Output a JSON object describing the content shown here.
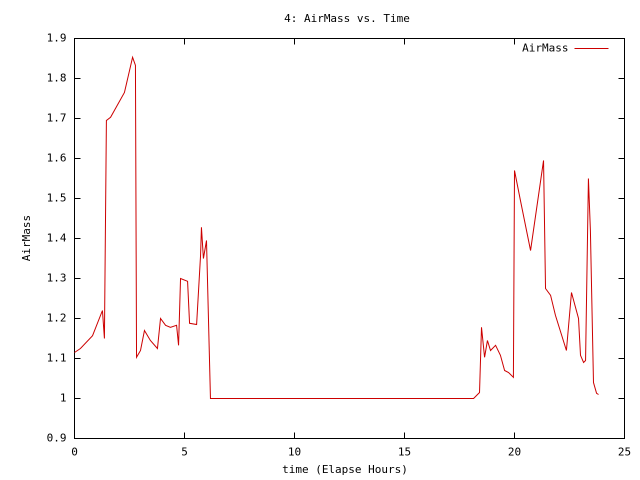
{
  "chart_data": {
    "type": "line",
    "title": "4: AirMass vs. Time",
    "x_label": "time (Elapse Hours)",
    "y_label": "AirMass",
    "x": [
      0,
      0.27,
      0.82,
      1.27,
      1.36,
      1.45,
      1.64,
      2.27,
      2.64,
      2.77,
      2.82,
      3.0,
      3.18,
      3.45,
      3.77,
      3.91,
      4.14,
      4.36,
      4.64,
      4.73,
      4.82,
      5.14,
      5.23,
      5.55,
      5.73,
      5.77,
      5.86,
      6.0,
      6.18,
      18.14,
      18.41,
      18.5,
      18.64,
      18.77,
      18.91,
      19.14,
      19.36,
      19.55,
      19.73,
      19.95,
      20.0,
      20.27,
      20.73,
      21.32,
      21.41,
      21.64,
      21.86,
      22.36,
      22.59,
      22.91,
      23.0,
      23.14,
      23.23,
      23.36,
      23.45,
      23.59,
      23.73,
      23.82
    ],
    "series": [
      {
        "name": "AirMass",
        "color": "#cc0000",
        "values": [
          1.115,
          1.125,
          1.157,
          1.22,
          1.15,
          1.695,
          1.703,
          1.765,
          1.853,
          1.833,
          1.103,
          1.12,
          1.17,
          1.145,
          1.125,
          1.2,
          1.183,
          1.178,
          1.183,
          1.133,
          1.3,
          1.293,
          1.188,
          1.185,
          1.358,
          1.428,
          1.35,
          1.395,
          1.0,
          1.0,
          1.015,
          1.178,
          1.103,
          1.145,
          1.12,
          1.133,
          1.108,
          1.07,
          1.065,
          1.053,
          1.57,
          1.495,
          1.37,
          1.595,
          1.275,
          1.258,
          1.208,
          1.12,
          1.265,
          1.2,
          1.108,
          1.09,
          1.095,
          1.55,
          1.42,
          1.04,
          1.013,
          1.01
        ]
      }
    ],
    "xlim": [
      0,
      25
    ],
    "xticks": [
      0,
      5,
      10,
      15,
      20,
      25
    ],
    "ylim": [
      0.9,
      1.9
    ],
    "yticks": [
      0.9,
      1,
      1.1,
      1.2,
      1.3,
      1.4,
      1.5,
      1.6,
      1.7,
      1.8,
      1.9
    ],
    "legend": "top-right",
    "grid": false
  }
}
